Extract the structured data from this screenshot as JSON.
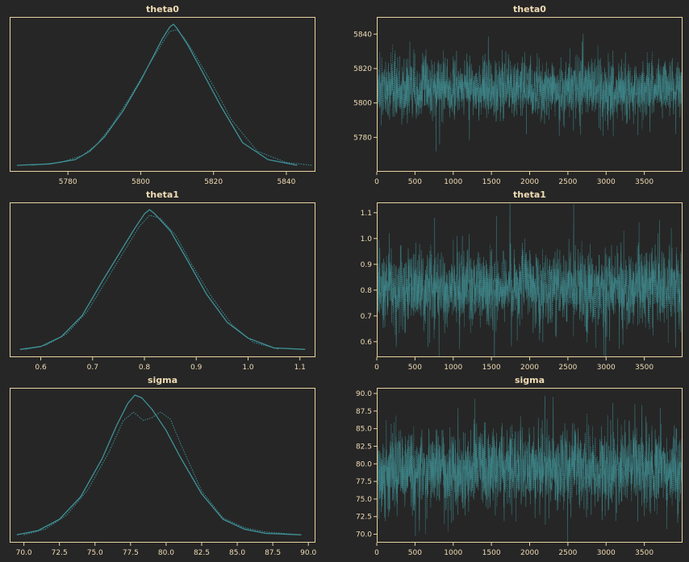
{
  "colors": {
    "background": "#262626",
    "frame": "#e8d3a1",
    "text": "#f0dcb5",
    "series": "#3f9298",
    "trace": "#3a6f70"
  },
  "chart_data": [
    {
      "type": "line",
      "title": "theta0",
      "kind": "density",
      "xlim": [
        5764,
        5848
      ],
      "xticks": [
        5780,
        5800,
        5820,
        5840
      ],
      "tick_labels": [
        "5780",
        "5800",
        "5820",
        "5840"
      ],
      "mean": 5808.5,
      "sd": 8.5,
      "alt_shift": 0.4,
      "bimodal": false,
      "series": [
        {
          "style": "solid",
          "x": [
            5766,
            5775,
            5782,
            5786,
            5790,
            5795,
            5800,
            5804,
            5806,
            5808,
            5809,
            5810,
            5813,
            5817,
            5822,
            5828,
            5835,
            5843
          ],
          "y": [
            0.0,
            0.01,
            0.04,
            0.1,
            0.2,
            0.38,
            0.6,
            0.8,
            0.9,
            0.98,
            1.0,
            0.97,
            0.85,
            0.66,
            0.42,
            0.16,
            0.04,
            0.0
          ]
        },
        {
          "style": "dotted",
          "x": [
            5770,
            5778,
            5784,
            5788,
            5792,
            5797,
            5802,
            5806,
            5808,
            5810,
            5812,
            5815,
            5820,
            5825,
            5832,
            5840,
            5847
          ],
          "y": [
            0.0,
            0.02,
            0.07,
            0.15,
            0.28,
            0.48,
            0.7,
            0.87,
            0.95,
            0.96,
            0.9,
            0.78,
            0.56,
            0.32,
            0.1,
            0.02,
            0.0
          ]
        }
      ]
    },
    {
      "type": "line",
      "title": "theta0",
      "kind": "trace",
      "xlim": [
        0,
        4000
      ],
      "ylim": [
        5760,
        5850
      ],
      "xticks": [
        0,
        500,
        1000,
        1500,
        2000,
        2500,
        3000,
        3500
      ],
      "tick_labels_x": [
        "0",
        "500",
        "1000",
        "1500",
        "2000",
        "2500",
        "3000",
        "3500"
      ],
      "yticks": [
        5780,
        5800,
        5820,
        5840
      ],
      "tick_labels_y": [
        "5780",
        "5800",
        "5820",
        "5840"
      ],
      "mean": 5808,
      "sd": 8.5,
      "draws": 4000
    },
    {
      "type": "line",
      "title": "theta1",
      "kind": "density",
      "xlim": [
        0.54,
        1.13
      ],
      "xticks": [
        0.6,
        0.7,
        0.8,
        0.9,
        1.0,
        1.1
      ],
      "tick_labels": [
        "0.6",
        "0.7",
        "0.8",
        "0.9",
        "1.0",
        "1.1"
      ],
      "mean": 0.806,
      "sd": 0.075,
      "alt_shift": 0.005,
      "bimodal": false,
      "series": [
        {
          "style": "solid",
          "x": [
            0.56,
            0.6,
            0.64,
            0.68,
            0.72,
            0.75,
            0.78,
            0.8,
            0.81,
            0.82,
            0.85,
            0.88,
            0.92,
            0.96,
            1.0,
            1.05,
            1.11
          ],
          "y": [
            0.01,
            0.03,
            0.1,
            0.25,
            0.5,
            0.68,
            0.86,
            0.97,
            1.0,
            0.97,
            0.85,
            0.66,
            0.4,
            0.2,
            0.09,
            0.02,
            0.01
          ]
        },
        {
          "style": "dotted",
          "x": [
            0.57,
            0.61,
            0.65,
            0.69,
            0.73,
            0.76,
            0.79,
            0.81,
            0.83,
            0.86,
            0.89,
            0.93,
            0.97,
            1.01,
            1.06
          ],
          "y": [
            0.01,
            0.04,
            0.12,
            0.28,
            0.52,
            0.7,
            0.88,
            0.96,
            0.94,
            0.82,
            0.62,
            0.38,
            0.18,
            0.06,
            0.01
          ]
        }
      ]
    },
    {
      "type": "line",
      "title": "theta1",
      "kind": "trace",
      "xlim": [
        0,
        4000
      ],
      "ylim": [
        0.54,
        1.14
      ],
      "xticks": [
        0,
        500,
        1000,
        1500,
        2000,
        2500,
        3000,
        3500
      ],
      "tick_labels_x": [
        "0",
        "500",
        "1000",
        "1500",
        "2000",
        "2500",
        "3000",
        "3500"
      ],
      "yticks": [
        0.6,
        0.7,
        0.8,
        0.9,
        1.0,
        1.1
      ],
      "tick_labels_y": [
        "0.6",
        "0.7",
        "0.8",
        "0.9",
        "1.0",
        "1.1"
      ],
      "mean": 0.81,
      "sd": 0.075,
      "draws": 4000
    },
    {
      "type": "line",
      "title": "sigma",
      "kind": "density",
      "xlim": [
        69.0,
        90.5
      ],
      "xticks": [
        70.0,
        72.5,
        75.0,
        77.5,
        80.0,
        82.5,
        85.0,
        87.5,
        90.0
      ],
      "tick_labels": [
        "70.0",
        "72.5",
        "75.0",
        "77.5",
        "80.0",
        "82.5",
        "85.0",
        "87.5",
        "90.0"
      ],
      "mean": 78.2,
      "sd": 2.7,
      "alt_shift": 0,
      "bimodal": true,
      "series": [
        {
          "style": "solid",
          "x": [
            69.5,
            71,
            72.5,
            74,
            75.5,
            76.5,
            77.3,
            77.8,
            78.3,
            79,
            80,
            81,
            82.5,
            84,
            85.5,
            87,
            89.5
          ],
          "y": [
            0.01,
            0.04,
            0.12,
            0.28,
            0.55,
            0.78,
            0.94,
            1.0,
            0.98,
            0.9,
            0.75,
            0.56,
            0.3,
            0.12,
            0.05,
            0.02,
            0.01
          ]
        },
        {
          "style": "dotted",
          "x": [
            70,
            71.5,
            73,
            74.5,
            76,
            77,
            77.7,
            78.4,
            79,
            79.6,
            80.3,
            81,
            82.5,
            84,
            85.5,
            87,
            89.5
          ],
          "y": [
            0.01,
            0.05,
            0.15,
            0.33,
            0.6,
            0.82,
            0.88,
            0.82,
            0.84,
            0.88,
            0.83,
            0.66,
            0.32,
            0.13,
            0.06,
            0.03,
            0.01
          ]
        }
      ]
    },
    {
      "type": "line",
      "title": "sigma",
      "kind": "trace",
      "xlim": [
        0,
        4000
      ],
      "ylim": [
        68.8,
        90.8
      ],
      "xticks": [
        0,
        500,
        1000,
        1500,
        2000,
        2500,
        3000,
        3500
      ],
      "tick_labels_x": [
        "0",
        "500",
        "1000",
        "1500",
        "2000",
        "2500",
        "3000",
        "3500"
      ],
      "yticks": [
        70.0,
        72.5,
        75.0,
        77.5,
        80.0,
        82.5,
        85.0,
        87.5,
        90.0
      ],
      "tick_labels_y": [
        "70.0",
        "72.5",
        "75.0",
        "77.5",
        "80.0",
        "82.5",
        "85.0",
        "87.5",
        "90.0"
      ],
      "mean": 79.3,
      "sd": 2.9,
      "draws": 4000
    }
  ]
}
